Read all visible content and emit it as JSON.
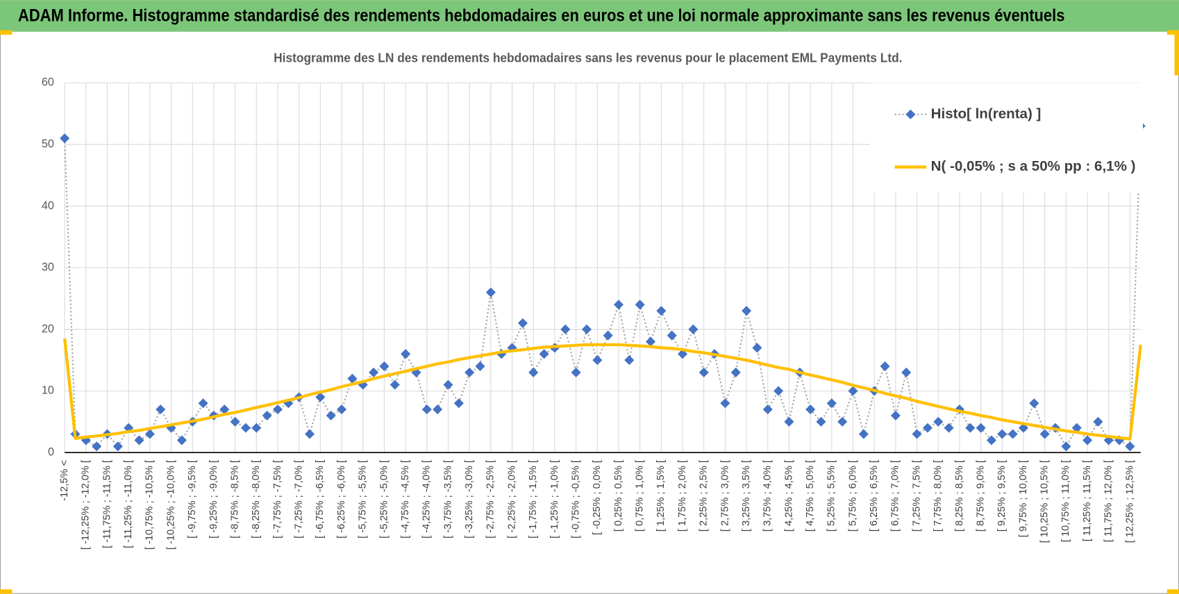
{
  "header": {
    "title": "ADAM Informe. Histogramme standardisé des rendements hebdomadaires en euros et une loi normale approximante sans les revenus éventuels"
  },
  "chart_data": {
    "type": "line",
    "title": "Histogramme des LN des rendements hebdomadaires sans les revenus pour le placement EML Payments Ltd.",
    "categories": [
      "-12,5% <",
      null,
      "[ -12,25% ; -12,0% [",
      null,
      "[ -11,75% ; -11,5% [",
      null,
      "[ -11,25% ; -11,0% [",
      null,
      "[ -10,75% ; -10,5% [",
      null,
      "[ -10,25% ; -10,0% [",
      null,
      "[ -9,75% ; -9,5% [",
      null,
      "[ -9,25% ; -9,0% [",
      null,
      "[ -8,75% ; -8,5% [",
      null,
      "[ -8,25% ; -8,0% [",
      null,
      "[ -7,75% ; -7,5% [",
      null,
      "[ -7,25% ; -7,0% [",
      null,
      "[ -6,75% ; -6,5% [",
      null,
      "[ -6,25% ; -6,0% [",
      null,
      "[ -5,75% ; -5,5% [",
      null,
      "[ -5,25% ; -5,0% [",
      null,
      "[ -4,75% ; -4,5% [",
      null,
      "[ -4,25% ; -4,0% [",
      null,
      "[ -3,75% ; -3,5% [",
      null,
      "[ -3,25% ; -3,0% [",
      null,
      "[ -2,75% ; -2,5% [",
      null,
      "[ -2,25% ; -2,0% [",
      null,
      "[ -1,75% ; -1,5% [",
      null,
      "[ -1,25% ; -1,0% [",
      null,
      "[ -0,75% ; -0,5% [",
      null,
      "[ -0,25% ; 0,0% [",
      null,
      "[ 0,25% ; 0,5% [",
      null,
      "[ 0,75% ; 1,0% [",
      null,
      "[ 1,25% ; 1,5% [",
      null,
      "[ 1,75% ; 2,0% [",
      null,
      "[ 2,25% ; 2,5% [",
      null,
      "[ 2,75% ; 3,0% [",
      null,
      "[ 3,25% ; 3,5% [",
      null,
      "[ 3,75% ; 4,0% [",
      null,
      "[ 4,25% ; 4,5% [",
      null,
      "[ 4,75% ; 5,0% [",
      null,
      "[ 5,25% ; 5,5% [",
      null,
      "[ 5,75% ; 6,0% [",
      null,
      "[ 6,25% ; 6,5% [",
      null,
      "[ 6,75% ; 7,0% [",
      null,
      "[ 7,25% ; 7,5% [",
      null,
      "[ 7,75% ; 8,0% [",
      null,
      "[ 8,25% ; 8,5% [",
      null,
      "[ 8,75% ; 9,0% [",
      null,
      "[ 9,25% ; 9,5% [",
      null,
      "[ 9,75% ; 10,0% [",
      null,
      "[ 10,25% ; 10,5% [",
      null,
      "[ 10,75% ; 11,0% [",
      null,
      "[ 11,25% ; 11,5% [",
      null,
      "[ 11,75% ; 12,0% [",
      null,
      "[ 12,25% ; 12,5% [",
      null
    ],
    "series": [
      {
        "name": "Histo[ ln(renta) ]",
        "color": "#4472c4",
        "line_color": "#a6a6a6",
        "values": [
          51,
          3,
          2,
          1,
          3,
          1,
          4,
          2,
          3,
          7,
          4,
          2,
          5,
          8,
          6,
          7,
          5,
          4,
          4,
          6,
          7,
          8,
          9,
          3,
          9,
          6,
          7,
          12,
          11,
          13,
          14,
          11,
          16,
          13,
          7,
          7,
          11,
          8,
          13,
          14,
          26,
          16,
          17,
          21,
          13,
          16,
          17,
          20,
          13,
          20,
          15,
          19,
          24,
          15,
          24,
          18,
          23,
          19,
          16,
          20,
          13,
          16,
          8,
          13,
          23,
          17,
          7,
          10,
          5,
          13,
          7,
          5,
          8,
          5,
          10,
          3,
          10,
          14,
          6,
          13,
          3,
          4,
          5,
          4,
          7,
          4,
          4,
          2,
          3,
          3,
          4,
          8,
          3,
          4,
          1,
          4,
          2,
          5,
          2,
          2,
          1,
          53
        ]
      },
      {
        "name": "N( -0,05% ; s a 50% pp : 6,1% )",
        "color": "#ffc000",
        "values": [
          18.5,
          2.3,
          2.5,
          2.7,
          2.9,
          3.1,
          3.4,
          3.6,
          3.9,
          4.2,
          4.5,
          4.8,
          5.1,
          5.4,
          5.8,
          6.2,
          6.5,
          6.9,
          7.3,
          7.7,
          8.1,
          8.5,
          8.9,
          9.4,
          9.8,
          10.2,
          10.7,
          11.1,
          11.5,
          12.0,
          12.4,
          12.8,
          13.2,
          13.6,
          14.0,
          14.4,
          14.7,
          15.1,
          15.4,
          15.7,
          16.0,
          16.3,
          16.5,
          16.7,
          16.9,
          17.1,
          17.2,
          17.3,
          17.4,
          17.5,
          17.5,
          17.5,
          17.5,
          17.4,
          17.3,
          17.2,
          17.0,
          16.9,
          16.7,
          16.4,
          16.2,
          15.9,
          15.6,
          15.3,
          15.0,
          14.6,
          14.2,
          13.8,
          13.5,
          13.0,
          12.6,
          12.2,
          11.8,
          11.4,
          10.9,
          10.5,
          10.1,
          9.6,
          9.2,
          8.8,
          8.3,
          7.9,
          7.5,
          7.1,
          6.7,
          6.4,
          6.0,
          5.7,
          5.3,
          5.0,
          4.7,
          4.4,
          4.1,
          3.8,
          3.5,
          3.3,
          3.0,
          2.8,
          2.6,
          2.4,
          2.2,
          17.5
        ]
      }
    ],
    "ylim": [
      0,
      60
    ],
    "yticks": [
      0,
      10,
      20,
      30,
      40,
      50,
      60
    ],
    "grid": true,
    "legend": "upper-right"
  }
}
